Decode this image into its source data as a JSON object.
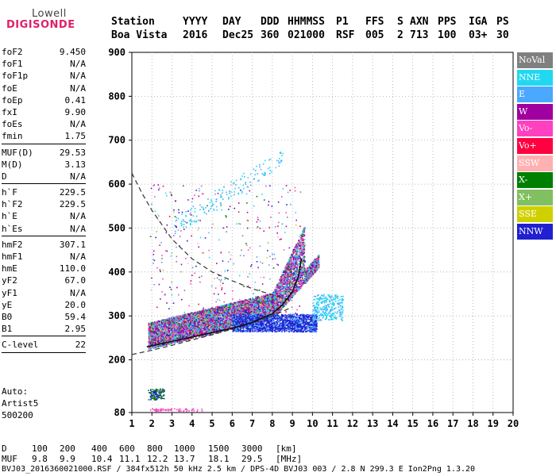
{
  "logo": {
    "line1": "Lowell",
    "line2": "DIGISONDE"
  },
  "header": {
    "labels": [
      "Station",
      "YYYY",
      "DAY",
      "DDD",
      "HHMMSS",
      "P1",
      "FFS",
      "S",
      "AXN",
      "PPS",
      "IGA",
      "PS"
    ],
    "values": [
      "Boa Vista",
      "2016",
      "Dec25",
      "360",
      "021000",
      "RSF",
      "005",
      "2",
      "713",
      "100",
      "03+",
      "30"
    ]
  },
  "parameters": {
    "group1": [
      {
        "label": "foF2",
        "value": "9.450"
      },
      {
        "label": "foF1",
        "value": "N/A"
      },
      {
        "label": "foF1p",
        "value": "N/A"
      },
      {
        "label": "foE",
        "value": "N/A"
      },
      {
        "label": "foEp",
        "value": "0.41"
      },
      {
        "label": "fxI",
        "value": "9.90"
      },
      {
        "label": "foEs",
        "value": "N/A"
      },
      {
        "label": "fmin",
        "value": "1.75"
      }
    ],
    "group2": [
      {
        "label": "MUF(D)",
        "value": "29.53"
      },
      {
        "label": "M(D)",
        "value": "3.13"
      },
      {
        "label": "D",
        "value": "N/A"
      }
    ],
    "group3": [
      {
        "label": "h`F",
        "value": "229.5"
      },
      {
        "label": "h`F2",
        "value": "229.5"
      },
      {
        "label": "h`E",
        "value": "N/A"
      },
      {
        "label": "h`Es",
        "value": "N/A"
      }
    ],
    "group4": [
      {
        "label": "hmF2",
        "value": "307.1"
      },
      {
        "label": "hmF1",
        "value": "N/A"
      },
      {
        "label": "hmE",
        "value": "110.0"
      },
      {
        "label": "yF2",
        "value": "67.0"
      },
      {
        "label": "yF1",
        "value": "N/A"
      },
      {
        "label": "yE",
        "value": "20.0"
      },
      {
        "label": "B0",
        "value": "59.4"
      },
      {
        "label": "B1",
        "value": "2.95"
      }
    ],
    "group5": [
      {
        "label": "C-level",
        "value": "22"
      }
    ]
  },
  "auto": {
    "line1": "Auto:",
    "line2": "Artist5",
    "line3": "500200"
  },
  "legend": [
    {
      "label": "NoVal",
      "bg": "#808080",
      "fg": "#ffffff"
    },
    {
      "label": "NNE",
      "bg": "#22d8f0",
      "fg": "#ffffff"
    },
    {
      "label": "E",
      "bg": "#4aa8ff",
      "fg": "#ffffff"
    },
    {
      "label": "W",
      "bg": "#a000a0",
      "fg": "#ffffff"
    },
    {
      "label": "Vo-",
      "bg": "#ff40c0",
      "fg": "#ffffff"
    },
    {
      "label": "Vo+",
      "bg": "#ff0040",
      "fg": "#ffffff"
    },
    {
      "label": "SSW",
      "bg": "#ffb0b0",
      "fg": "#ffffff"
    },
    {
      "label": "X-",
      "bg": "#008000",
      "fg": "#ffffff"
    },
    {
      "label": "X+",
      "bg": "#80c060",
      "fg": "#ffffff"
    },
    {
      "label": "SSE",
      "bg": "#d0d000",
      "fg": "#ffffff"
    },
    {
      "label": "NNW",
      "bg": "#2020d0",
      "fg": "#ffffff"
    }
  ],
  "footer": {
    "d_label": "D",
    "d_values": [
      "100",
      "200",
      "400",
      "600",
      "800",
      "1000",
      "1500",
      "3000",
      "[km]"
    ],
    "muf_label": "MUF",
    "muf_values": [
      "9.8",
      "9.9",
      "10.4",
      "11.1",
      "12.2",
      "13.7",
      "18.1",
      "29.5",
      "[MHz]"
    ],
    "info": "BVJ03_2016360021000.RSF / 384fx512h 50 kHz 2.5 km / DPS-4D BVJ03 003 / 2.8 N 299.3 E Ion2Png 1.3.20"
  },
  "chart_data": {
    "type": "scatter",
    "xlabel": "",
    "ylabel": "",
    "xlim": [
      1,
      20
    ],
    "ylim": [
      80,
      900
    ],
    "xticks": [
      1,
      2,
      3,
      4,
      5,
      6,
      7,
      8,
      9,
      10,
      11,
      12,
      13,
      14,
      15,
      16,
      17,
      18,
      19,
      20
    ],
    "yticks": [
      80,
      200,
      300,
      400,
      500,
      600,
      700,
      800,
      900
    ],
    "grid": true,
    "legend_position": "right",
    "trace_curve": {
      "x": [
        1.75,
        2,
        3,
        4,
        5,
        6,
        7,
        8,
        8.5,
        9,
        9.3,
        9.45
      ],
      "y": [
        229.5,
        232,
        242,
        252,
        262,
        272,
        285,
        305,
        325,
        355,
        390,
        430
      ]
    },
    "muf_curve": {
      "x": [
        1,
        1.5,
        2,
        3,
        4,
        5,
        6,
        7,
        8,
        9
      ],
      "y": [
        625,
        580,
        540,
        475,
        430,
        400,
        380,
        362,
        348,
        335
      ]
    },
    "lower_curve": {
      "x": [
        1,
        2,
        3,
        4,
        5,
        6,
        7,
        8,
        9
      ],
      "y": [
        212,
        222,
        233,
        245,
        257,
        270,
        284,
        300,
        320
      ]
    }
  }
}
